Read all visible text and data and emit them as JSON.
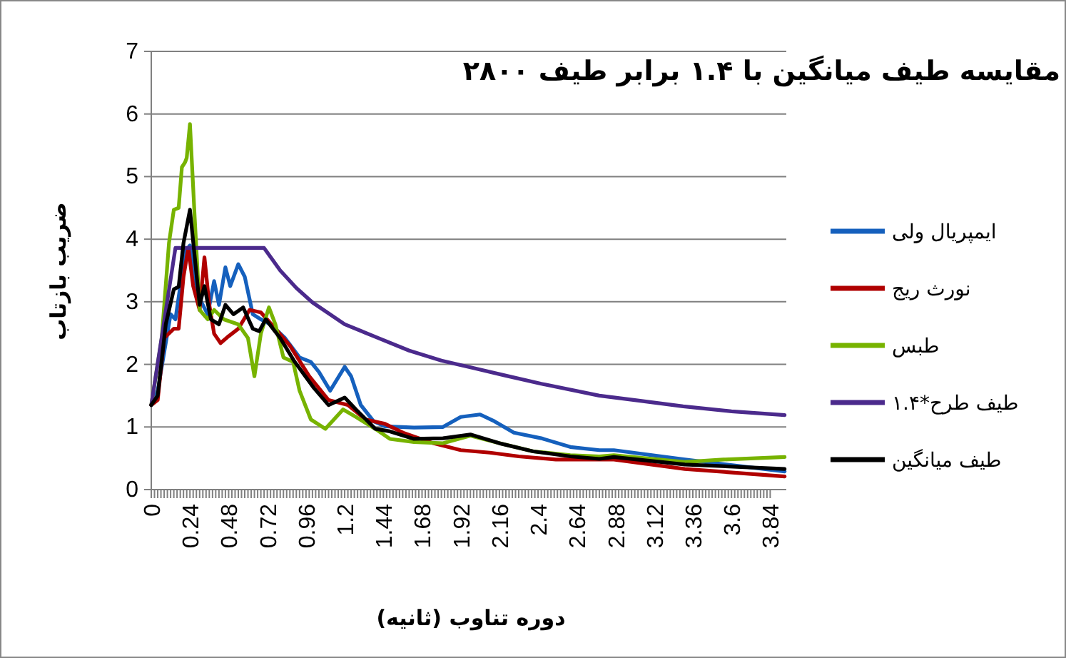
{
  "chart_data": {
    "type": "line",
    "title": "مقایسه طیف میانگین با ۱.۴ برابر طیف ۲۸۰۰",
    "xlabel": "دوره تناوب (ثانیه)",
    "ylabel": "ضریب بازتاب",
    "xlim": [
      0,
      3.94
    ],
    "ylim": [
      0,
      7
    ],
    "xticks": [
      0,
      0.24,
      0.48,
      0.72,
      0.96,
      1.2,
      1.44,
      1.68,
      1.92,
      2.16,
      2.4,
      2.64,
      2.88,
      3.12,
      3.36,
      3.6,
      3.84
    ],
    "yticks": [
      0,
      1,
      2,
      3,
      4,
      5,
      6,
      7
    ],
    "grid": "y",
    "legend": "right",
    "marker": "none",
    "line_style": "solid",
    "series": [
      {
        "name": "ایمپریال ولی",
        "color": "#1560bd",
        "x": [
          0,
          0.04,
          0.12,
          0.15,
          0.18,
          0.21,
          0.24,
          0.29,
          0.35,
          0.39,
          0.42,
          0.46,
          0.49,
          0.54,
          0.58,
          0.63,
          0.68,
          0.74,
          0.83,
          0.92,
          0.99,
          1.04,
          1.11,
          1.2,
          1.24,
          1.3,
          1.38,
          1.45,
          1.63,
          1.81,
          1.92,
          2.04,
          2.13,
          2.25,
          2.42,
          2.6,
          2.78,
          2.87,
          3.31,
          3.93
        ],
        "values": [
          1.35,
          1.58,
          2.8,
          2.72,
          3.25,
          3.8,
          3.9,
          3.1,
          2.8,
          3.33,
          2.95,
          3.55,
          3.25,
          3.6,
          3.4,
          2.8,
          2.72,
          2.64,
          2.42,
          2.11,
          2.04,
          1.88,
          1.58,
          1.96,
          1.81,
          1.35,
          1.09,
          1.01,
          0.99,
          1.0,
          1.16,
          1.2,
          1.09,
          0.91,
          0.82,
          0.68,
          0.63,
          0.63,
          0.48,
          0.29
        ]
      },
      {
        "name": "نورث ریج",
        "color": "#b00000",
        "x": [
          0,
          0.04,
          0.08,
          0.14,
          0.17,
          0.2,
          0.23,
          0.26,
          0.3,
          0.33,
          0.36,
          0.39,
          0.43,
          0.48,
          0.54,
          0.61,
          0.68,
          0.77,
          0.86,
          0.98,
          1.1,
          1.22,
          1.33,
          1.45,
          1.57,
          1.75,
          1.92,
          2.1,
          2.28,
          2.51,
          2.78,
          2.87,
          3.31,
          3.93
        ],
        "values": [
          1.35,
          1.43,
          2.42,
          2.57,
          2.57,
          3.4,
          3.86,
          3.25,
          2.87,
          3.71,
          2.95,
          2.49,
          2.34,
          2.45,
          2.57,
          2.87,
          2.83,
          2.57,
          2.3,
          1.81,
          1.43,
          1.35,
          1.12,
          1.05,
          0.9,
          0.74,
          0.63,
          0.59,
          0.53,
          0.48,
          0.48,
          0.48,
          0.33,
          0.21
        ]
      },
      {
        "name": "طبس",
        "color": "#77b300",
        "x": [
          0,
          0.065,
          0.11,
          0.14,
          0.17,
          0.19,
          0.21,
          0.22,
          0.24,
          0.27,
          0.3,
          0.35,
          0.39,
          0.45,
          0.54,
          0.6,
          0.64,
          0.68,
          0.73,
          0.77,
          0.82,
          0.88,
          0.92,
          0.99,
          1.08,
          1.19,
          1.27,
          1.39,
          1.48,
          1.63,
          1.81,
          1.98,
          2.16,
          2.37,
          2.6,
          2.78,
          2.87,
          3.31,
          3.55,
          3.93
        ],
        "values": [
          1.35,
          2.42,
          3.94,
          4.47,
          4.5,
          5.15,
          5.23,
          5.3,
          5.84,
          4.32,
          2.87,
          2.72,
          2.87,
          2.72,
          2.64,
          2.42,
          1.81,
          2.49,
          2.91,
          2.64,
          2.11,
          2.04,
          1.58,
          1.12,
          0.97,
          1.28,
          1.16,
          0.97,
          0.81,
          0.76,
          0.74,
          0.86,
          0.74,
          0.61,
          0.55,
          0.53,
          0.55,
          0.44,
          0.48,
          0.52
        ]
      },
      {
        "name": "طیف طرح*۱.۴",
        "color": "#4b2a8c",
        "x": [
          0,
          0.15,
          0.7,
          0.8,
          0.9,
          1.0,
          1.2,
          1.4,
          1.6,
          1.8,
          2.0,
          2.2,
          2.42,
          2.78,
          3.0,
          3.3,
          3.6,
          3.93
        ],
        "values": [
          1.35,
          3.86,
          3.86,
          3.5,
          3.22,
          2.99,
          2.64,
          2.43,
          2.22,
          2.06,
          1.94,
          1.82,
          1.69,
          1.5,
          1.43,
          1.33,
          1.25,
          1.19
        ]
      },
      {
        "name": "طیف میانگین",
        "color": "#000000",
        "x": [
          0,
          0.04,
          0.09,
          0.14,
          0.17,
          0.2,
          0.24,
          0.27,
          0.3,
          0.33,
          0.37,
          0.42,
          0.46,
          0.51,
          0.57,
          0.63,
          0.67,
          0.71,
          0.8,
          0.89,
          1.01,
          1.1,
          1.2,
          1.27,
          1.39,
          1.48,
          1.63,
          1.81,
          1.98,
          2.16,
          2.37,
          2.6,
          2.78,
          2.87,
          3.31,
          3.93
        ],
        "values": [
          1.35,
          1.5,
          2.64,
          3.2,
          3.24,
          3.94,
          4.47,
          3.71,
          2.95,
          3.25,
          2.72,
          2.64,
          2.95,
          2.8,
          2.91,
          2.57,
          2.53,
          2.72,
          2.42,
          2.04,
          1.62,
          1.35,
          1.47,
          1.28,
          0.97,
          0.93,
          0.81,
          0.82,
          0.88,
          0.74,
          0.61,
          0.53,
          0.49,
          0.52,
          0.4,
          0.33
        ]
      }
    ]
  }
}
